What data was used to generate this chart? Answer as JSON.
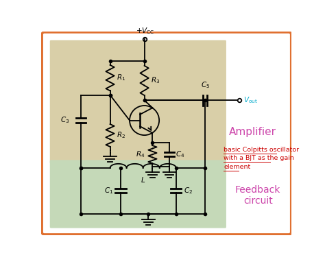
{
  "bg_color": "#ffffff",
  "outer_border_color": "#e07030",
  "amplifier_bg": "#d9cfa8",
  "feedback_bg": "#c5d9b8",
  "component_color": "#000000",
  "vout_color": "#00aacc",
  "amplifier_label": "Amplifier",
  "amplifier_color": "#cc44aa",
  "feedback_label": "Feedback\ncircuit",
  "feedback_color": "#cc44aa",
  "annotation_color": "#cc0000",
  "annotation_text": "basic Colpitts oscillator\nwith a BJT as the gain\nelement"
}
